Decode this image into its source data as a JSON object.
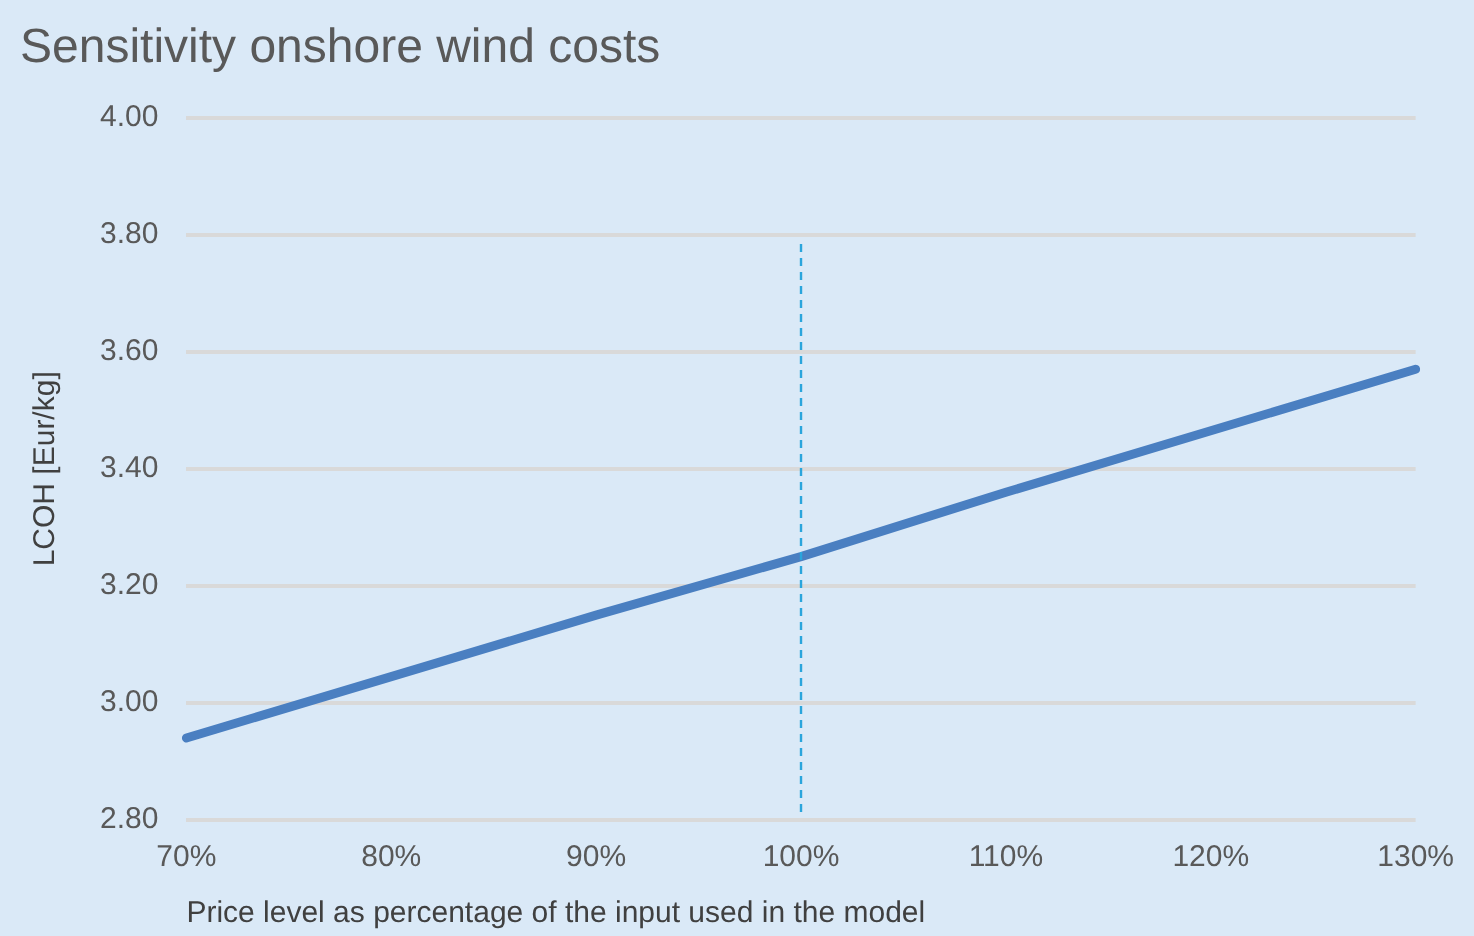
{
  "chart_data": {
    "type": "line",
    "title": "Sensitivity onshore wind costs",
    "xlabel": "Price level as percentage of the input used in the model",
    "ylabel": "LCOH [Eur/kg]",
    "categories": [
      "70%",
      "80%",
      "90%",
      "100%",
      "110%",
      "120%",
      "130%"
    ],
    "series": [
      {
        "color": "#4a7fc1",
        "values": [
          2.94,
          3.045,
          3.15,
          3.25,
          3.36,
          3.465,
          3.57
        ]
      }
    ],
    "ylim": [
      2.8,
      4.0
    ],
    "yticks": [
      {
        "value": 2.8,
        "label": "2.80"
      },
      {
        "value": 3.0,
        "label": "3.00"
      },
      {
        "value": 3.2,
        "label": "3.20"
      },
      {
        "value": 3.4,
        "label": "3.40"
      },
      {
        "value": 3.6,
        "label": "3.60"
      },
      {
        "value": 3.8,
        "label": "3.80"
      },
      {
        "value": 4.0,
        "label": "4.00"
      }
    ],
    "grid": "y",
    "legend": false,
    "marker": "none",
    "line_style": "solid",
    "ref_lines": [
      {
        "axis": "x",
        "value": "100%",
        "color": "#2aa5dc",
        "line_style": "dashed"
      }
    ]
  }
}
